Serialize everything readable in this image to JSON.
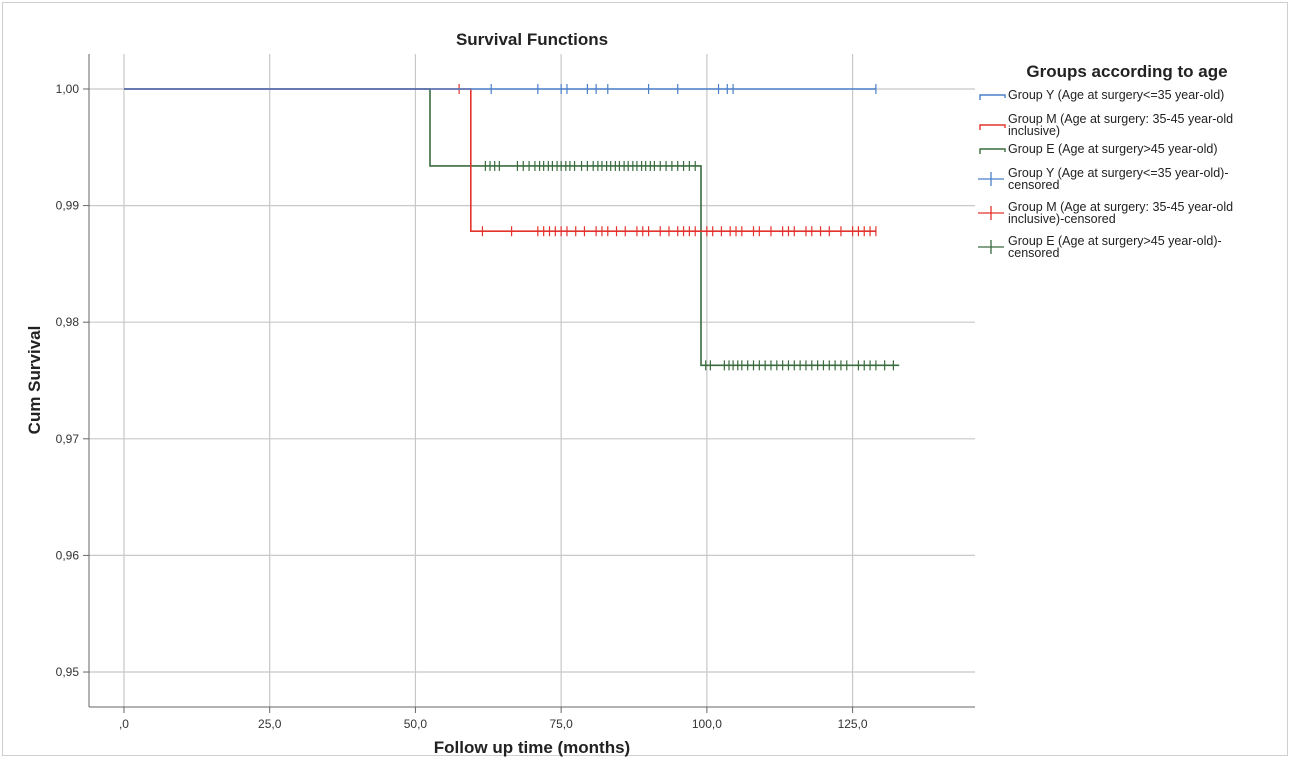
{
  "chart_data": {
    "type": "line",
    "title": "Survival Functions",
    "xlabel": "Follow up time (months)",
    "ylabel": "Cum Survival",
    "xlim": [
      -6,
      146
    ],
    "ylim": [
      0.947,
      1.003
    ],
    "grid": true,
    "x_ticks": [
      0,
      25,
      50,
      75,
      100,
      125
    ],
    "x_tick_labels": [
      ",0",
      "25,0",
      "50,0",
      "75,0",
      "100,0",
      "125,0"
    ],
    "y_ticks": [
      1.0,
      0.99,
      0.98,
      0.97,
      0.96,
      0.95
    ],
    "y_tick_labels": [
      "1,00",
      "0,99",
      "0,98",
      "0,97",
      "0,96",
      "0,95"
    ],
    "legend": {
      "title": "Groups according to age",
      "position": "right",
      "entries": [
        {
          "label": "Group Y (Age at surgery<=35 year-old)",
          "kind": "line",
          "series": "Y"
        },
        {
          "label": "Group M (Age at surgery: 35-45 year-old inclusive)",
          "kind": "line",
          "series": "M"
        },
        {
          "label": "Group E (Age at surgery>45 year-old)",
          "kind": "line",
          "series": "E"
        },
        {
          "label": "Group Y (Age at surgery<=35 year-old)-censored",
          "kind": "censor",
          "series": "Y"
        },
        {
          "label": "Group M (Age at surgery: 35-45 year-old inclusive)-censored",
          "kind": "censor",
          "series": "M"
        },
        {
          "label": "Group E (Age at surgery>45 year-old)-censored",
          "kind": "censor",
          "series": "E"
        }
      ]
    },
    "series": [
      {
        "key": "Y",
        "color": "#4a7fc9",
        "steps": [
          [
            0,
            1.0
          ],
          [
            129,
            1.0
          ]
        ],
        "censored": [
          {
            "t": 63,
            "s": 1.0
          },
          {
            "t": 71,
            "s": 1.0
          },
          {
            "t": 75,
            "s": 1.0
          },
          {
            "t": 76,
            "s": 1.0
          },
          {
            "t": 79.5,
            "s": 1.0
          },
          {
            "t": 81,
            "s": 1.0
          },
          {
            "t": 83,
            "s": 1.0
          },
          {
            "t": 90,
            "s": 1.0
          },
          {
            "t": 95,
            "s": 1.0
          },
          {
            "t": 102,
            "s": 1.0
          },
          {
            "t": 103.5,
            "s": 1.0
          },
          {
            "t": 104.5,
            "s": 1.0
          },
          {
            "t": 129,
            "s": 1.0
          }
        ]
      },
      {
        "key": "M",
        "color": "#e3332d",
        "steps": [
          [
            0,
            1.0
          ],
          [
            59.5,
            1.0
          ],
          [
            59.5,
            0.9878
          ],
          [
            129,
            0.9878
          ]
        ],
        "censored": [
          {
            "t": 57.5,
            "s": 1.0
          },
          {
            "t": 61.5,
            "s": 0.9878
          },
          {
            "t": 66.5,
            "s": 0.9878
          },
          {
            "t": 71,
            "s": 0.9878
          },
          {
            "t": 72,
            "s": 0.9878
          },
          {
            "t": 73,
            "s": 0.9878
          },
          {
            "t": 74,
            "s": 0.9878
          },
          {
            "t": 75,
            "s": 0.9878
          },
          {
            "t": 76,
            "s": 0.9878
          },
          {
            "t": 77.5,
            "s": 0.9878
          },
          {
            "t": 79,
            "s": 0.9878
          },
          {
            "t": 81,
            "s": 0.9878
          },
          {
            "t": 82,
            "s": 0.9878
          },
          {
            "t": 83,
            "s": 0.9878
          },
          {
            "t": 84.5,
            "s": 0.9878
          },
          {
            "t": 86,
            "s": 0.9878
          },
          {
            "t": 88,
            "s": 0.9878
          },
          {
            "t": 89,
            "s": 0.9878
          },
          {
            "t": 90,
            "s": 0.9878
          },
          {
            "t": 92,
            "s": 0.9878
          },
          {
            "t": 93.5,
            "s": 0.9878
          },
          {
            "t": 95,
            "s": 0.9878
          },
          {
            "t": 96,
            "s": 0.9878
          },
          {
            "t": 97,
            "s": 0.9878
          },
          {
            "t": 98,
            "s": 0.9878
          },
          {
            "t": 100,
            "s": 0.9878
          },
          {
            "t": 101,
            "s": 0.9878
          },
          {
            "t": 102.5,
            "s": 0.9878
          },
          {
            "t": 104,
            "s": 0.9878
          },
          {
            "t": 105,
            "s": 0.9878
          },
          {
            "t": 106,
            "s": 0.9878
          },
          {
            "t": 108,
            "s": 0.9878
          },
          {
            "t": 109,
            "s": 0.9878
          },
          {
            "t": 111,
            "s": 0.9878
          },
          {
            "t": 113,
            "s": 0.9878
          },
          {
            "t": 114,
            "s": 0.9878
          },
          {
            "t": 115,
            "s": 0.9878
          },
          {
            "t": 117,
            "s": 0.9878
          },
          {
            "t": 118,
            "s": 0.9878
          },
          {
            "t": 119.5,
            "s": 0.9878
          },
          {
            "t": 121,
            "s": 0.9878
          },
          {
            "t": 123,
            "s": 0.9878
          },
          {
            "t": 125,
            "s": 0.9878
          },
          {
            "t": 126,
            "s": 0.9878
          },
          {
            "t": 127,
            "s": 0.9878
          },
          {
            "t": 128,
            "s": 0.9878
          },
          {
            "t": 129,
            "s": 0.9878
          }
        ]
      },
      {
        "key": "E",
        "color": "#3a6b3f",
        "steps": [
          [
            0,
            1.0
          ],
          [
            52.5,
            1.0
          ],
          [
            52.5,
            0.9934
          ],
          [
            99,
            0.9934
          ],
          [
            99,
            0.9763
          ],
          [
            133,
            0.9763
          ]
        ],
        "censored": [
          {
            "t": 62,
            "s": 0.9934
          },
          {
            "t": 62.8,
            "s": 0.9934
          },
          {
            "t": 63.6,
            "s": 0.9934
          },
          {
            "t": 64.4,
            "s": 0.9934
          },
          {
            "t": 67.5,
            "s": 0.9934
          },
          {
            "t": 68.5,
            "s": 0.9934
          },
          {
            "t": 69.5,
            "s": 0.9934
          },
          {
            "t": 70.5,
            "s": 0.9934
          },
          {
            "t": 71.3,
            "s": 0.9934
          },
          {
            "t": 72,
            "s": 0.9934
          },
          {
            "t": 72.8,
            "s": 0.9934
          },
          {
            "t": 73.5,
            "s": 0.9934
          },
          {
            "t": 74.3,
            "s": 0.9934
          },
          {
            "t": 75,
            "s": 0.9934
          },
          {
            "t": 75.8,
            "s": 0.9934
          },
          {
            "t": 76.5,
            "s": 0.9934
          },
          {
            "t": 77.3,
            "s": 0.9934
          },
          {
            "t": 78.5,
            "s": 0.9934
          },
          {
            "t": 79.5,
            "s": 0.9934
          },
          {
            "t": 80.5,
            "s": 0.9934
          },
          {
            "t": 81.3,
            "s": 0.9934
          },
          {
            "t": 82,
            "s": 0.9934
          },
          {
            "t": 82.8,
            "s": 0.9934
          },
          {
            "t": 83.5,
            "s": 0.9934
          },
          {
            "t": 84.3,
            "s": 0.9934
          },
          {
            "t": 85,
            "s": 0.9934
          },
          {
            "t": 85.8,
            "s": 0.9934
          },
          {
            "t": 86.5,
            "s": 0.9934
          },
          {
            "t": 87.3,
            "s": 0.9934
          },
          {
            "t": 88,
            "s": 0.9934
          },
          {
            "t": 88.8,
            "s": 0.9934
          },
          {
            "t": 89.5,
            "s": 0.9934
          },
          {
            "t": 90.3,
            "s": 0.9934
          },
          {
            "t": 91,
            "s": 0.9934
          },
          {
            "t": 92,
            "s": 0.9934
          },
          {
            "t": 93,
            "s": 0.9934
          },
          {
            "t": 94,
            "s": 0.9934
          },
          {
            "t": 95,
            "s": 0.9934
          },
          {
            "t": 96,
            "s": 0.9934
          },
          {
            "t": 97,
            "s": 0.9934
          },
          {
            "t": 98,
            "s": 0.9934
          },
          {
            "t": 99.8,
            "s": 0.9763
          },
          {
            "t": 100.6,
            "s": 0.9763
          },
          {
            "t": 103,
            "s": 0.9763
          },
          {
            "t": 103.8,
            "s": 0.9763
          },
          {
            "t": 104.5,
            "s": 0.9763
          },
          {
            "t": 105.3,
            "s": 0.9763
          },
          {
            "t": 106,
            "s": 0.9763
          },
          {
            "t": 107,
            "s": 0.9763
          },
          {
            "t": 108,
            "s": 0.9763
          },
          {
            "t": 109,
            "s": 0.9763
          },
          {
            "t": 110,
            "s": 0.9763
          },
          {
            "t": 111,
            "s": 0.9763
          },
          {
            "t": 112,
            "s": 0.9763
          },
          {
            "t": 113,
            "s": 0.9763
          },
          {
            "t": 114,
            "s": 0.9763
          },
          {
            "t": 115,
            "s": 0.9763
          },
          {
            "t": 116,
            "s": 0.9763
          },
          {
            "t": 117,
            "s": 0.9763
          },
          {
            "t": 118,
            "s": 0.9763
          },
          {
            "t": 119,
            "s": 0.9763
          },
          {
            "t": 120,
            "s": 0.9763
          },
          {
            "t": 121,
            "s": 0.9763
          },
          {
            "t": 122,
            "s": 0.9763
          },
          {
            "t": 123,
            "s": 0.9763
          },
          {
            "t": 124,
            "s": 0.9763
          },
          {
            "t": 126,
            "s": 0.9763
          },
          {
            "t": 127,
            "s": 0.9763
          },
          {
            "t": 128,
            "s": 0.9763
          },
          {
            "t": 129,
            "s": 0.9763
          },
          {
            "t": 130.5,
            "s": 0.9763
          },
          {
            "t": 132,
            "s": 0.9763
          }
        ]
      }
    ]
  }
}
